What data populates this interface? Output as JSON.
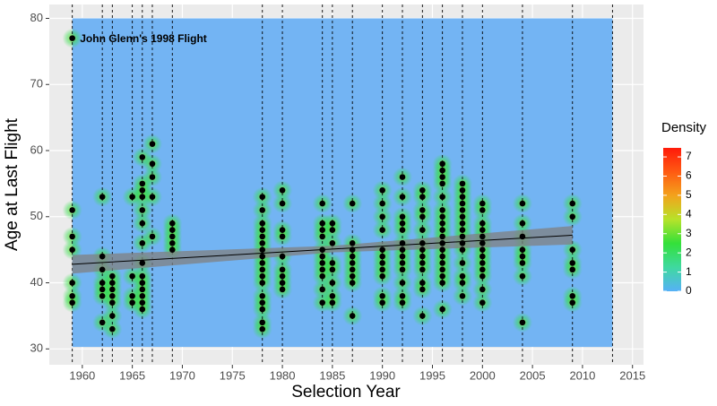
{
  "chart_data": {
    "type": "scatter",
    "x_label": "Selection Year",
    "y_label": "Age at Last Flight",
    "xlim": [
      1956.7,
      2016.1
    ],
    "ylim": [
      27.6,
      82.1
    ],
    "xticks": [
      1960,
      1965,
      1970,
      1975,
      1980,
      1985,
      1990,
      1995,
      2000,
      2005,
      2010,
      2015
    ],
    "yticks": [
      30,
      40,
      50,
      60,
      70,
      80
    ],
    "grid": true,
    "point_color": "#000000",
    "raster": {
      "xlim": [
        1959,
        2013
      ],
      "ylim": [
        30.3,
        80
      ],
      "color": "#73b4f3"
    },
    "vlines": [
      1959,
      1962,
      1963,
      1965,
      1966,
      1967,
      1969,
      1978,
      1980,
      1984,
      1985,
      1987,
      1990,
      1992,
      1994,
      1996,
      1998,
      2000,
      2004,
      2009,
      2013
    ],
    "points": [
      {
        "x": 1959,
        "y": [
          77,
          51,
          47,
          45,
          40,
          38,
          37
        ]
      },
      {
        "x": 1962,
        "y": [
          53,
          44,
          42,
          40,
          39,
          38,
          34
        ]
      },
      {
        "x": 1963,
        "y": [
          41,
          40,
          39,
          38,
          37,
          35,
          33
        ]
      },
      {
        "x": 1965,
        "y": [
          53,
          41,
          38,
          37
        ]
      },
      {
        "x": 1966,
        "y": [
          59,
          55,
          54,
          53,
          51,
          49,
          46,
          43,
          41,
          40,
          39,
          38,
          37,
          36
        ]
      },
      {
        "x": 1967,
        "y": [
          61,
          58,
          56,
          53,
          47
        ]
      },
      {
        "x": 1969,
        "y": [
          49,
          48,
          47,
          46,
          45
        ]
      },
      {
        "x": 1978,
        "y": [
          53,
          51,
          49,
          48,
          47,
          46,
          45,
          44,
          43,
          42,
          41,
          40,
          38,
          37,
          36,
          34,
          33
        ]
      },
      {
        "x": 1980,
        "y": [
          54,
          52,
          48,
          47,
          44,
          42,
          41,
          40,
          39
        ]
      },
      {
        "x": 1984,
        "y": [
          52,
          49,
          48,
          47,
          45,
          44,
          43,
          42,
          41,
          39,
          37
        ]
      },
      {
        "x": 1985,
        "y": [
          49,
          48,
          46,
          43,
          42,
          40,
          38,
          37
        ]
      },
      {
        "x": 1987,
        "y": [
          52,
          46,
          45,
          44,
          43,
          42,
          41,
          40,
          35
        ]
      },
      {
        "x": 1990,
        "y": [
          54,
          52,
          50,
          48,
          45,
          44,
          43,
          42,
          41,
          38,
          37
        ]
      },
      {
        "x": 1992,
        "y": [
          56,
          53,
          50,
          49,
          48,
          46,
          45,
          44,
          43,
          42,
          40,
          38,
          37
        ]
      },
      {
        "x": 1994,
        "y": [
          54,
          53,
          51,
          50,
          48,
          46,
          45,
          44,
          43,
          42,
          40,
          39,
          35
        ]
      },
      {
        "x": 1996,
        "y": [
          58,
          57,
          56,
          55,
          53,
          51,
          50,
          49,
          48,
          47,
          46,
          45,
          44,
          43,
          42,
          41,
          40,
          36
        ]
      },
      {
        "x": 1998,
        "y": [
          55,
          54,
          53,
          52,
          51,
          50,
          49,
          48,
          47,
          46,
          45,
          43,
          41,
          40,
          38
        ]
      },
      {
        "x": 2000,
        "y": [
          52,
          51,
          49,
          48,
          47,
          46,
          45,
          44,
          43,
          42,
          41,
          39,
          37
        ]
      },
      {
        "x": 2004,
        "y": [
          52,
          49,
          47,
          45,
          44,
          43,
          41,
          34
        ]
      },
      {
        "x": 2009,
        "y": [
          52,
          50,
          45,
          43,
          42,
          38,
          37
        ]
      }
    ],
    "trend": {
      "x": [
        1959,
        1985,
        2009
      ],
      "y": [
        42.8,
        45.1,
        47.2
      ],
      "lower": [
        41.4,
        44.6,
        45.8
      ],
      "upper": [
        44.2,
        45.6,
        48.6
      ],
      "color": "#000000",
      "band_color": "#808080"
    },
    "annotation": {
      "text": "John Glenn's 1998 Flight",
      "x": 1959.5,
      "y": 77
    },
    "colorbar": {
      "title": "Density",
      "lim": [
        0,
        7.47
      ],
      "ticks": [
        0,
        1,
        2,
        3,
        4,
        5,
        6,
        7
      ],
      "colors": [
        "#56b1f7",
        "#3fd9a0",
        "#33e03a",
        "#b6e32a",
        "#f3a31c",
        "#ff5a12",
        "#ff1a0a"
      ]
    }
  }
}
